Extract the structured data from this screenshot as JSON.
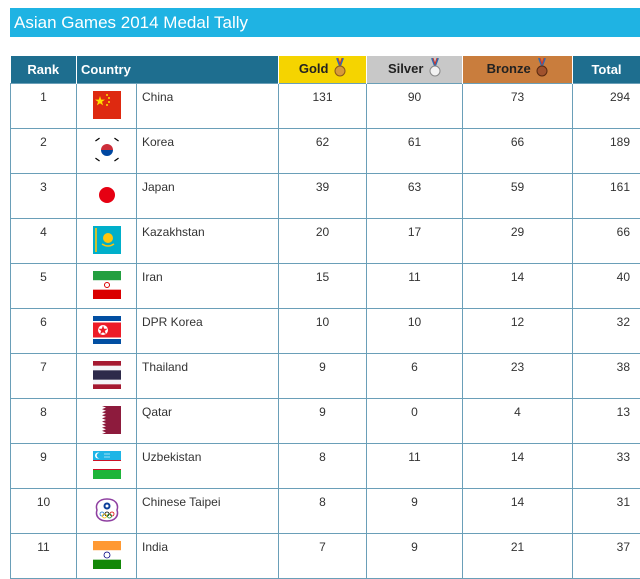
{
  "title": "Asian Games 2014 Medal Tally",
  "headers": {
    "rank": "Rank",
    "country": "Country",
    "gold": "Gold",
    "silver": "Silver",
    "bronze": "Bronze",
    "total": "Total"
  },
  "colors": {
    "title_bar": "#1fb3e3",
    "header": "#1e6e8f",
    "gold": "#f5d400",
    "silver": "#c8c8c8",
    "bronze": "#c97d3d"
  },
  "rows": [
    {
      "rank": "1",
      "country": "China",
      "gold": "131",
      "silver": "90",
      "bronze": "73",
      "total": "294",
      "flag": "china-flag-icon"
    },
    {
      "rank": "2",
      "country": "Korea",
      "gold": "62",
      "silver": "61",
      "bronze": "66",
      "total": "189",
      "flag": "korea-flag-icon"
    },
    {
      "rank": "3",
      "country": "Japan",
      "gold": "39",
      "silver": "63",
      "bronze": "59",
      "total": "161",
      "flag": "japan-flag-icon"
    },
    {
      "rank": "4",
      "country": "Kazakhstan",
      "gold": "20",
      "silver": "17",
      "bronze": "29",
      "total": "66",
      "flag": "kazakhstan-flag-icon"
    },
    {
      "rank": "5",
      "country": "Iran",
      "gold": "15",
      "silver": "11",
      "bronze": "14",
      "total": "40",
      "flag": "iran-flag-icon"
    },
    {
      "rank": "6",
      "country": "DPR Korea",
      "gold": "10",
      "silver": "10",
      "bronze": "12",
      "total": "32",
      "flag": "dpr-korea-flag-icon"
    },
    {
      "rank": "7",
      "country": "Thailand",
      "gold": "9",
      "silver": "6",
      "bronze": "23",
      "total": "38",
      "flag": "thailand-flag-icon"
    },
    {
      "rank": "8",
      "country": "Qatar",
      "gold": "9",
      "silver": "0",
      "bronze": "4",
      "total": "13",
      "flag": "qatar-flag-icon"
    },
    {
      "rank": "9",
      "country": "Uzbekistan",
      "gold": "8",
      "silver": "11",
      "bronze": "14",
      "total": "33",
      "flag": "uzbekistan-flag-icon"
    },
    {
      "rank": "10",
      "country": "Chinese Taipei",
      "gold": "8",
      "silver": "9",
      "bronze": "14",
      "total": "31",
      "flag": "chinese-taipei-flag-icon"
    },
    {
      "rank": "11",
      "country": "India",
      "gold": "7",
      "silver": "9",
      "bronze": "21",
      "total": "37",
      "flag": "india-flag-icon"
    }
  ]
}
